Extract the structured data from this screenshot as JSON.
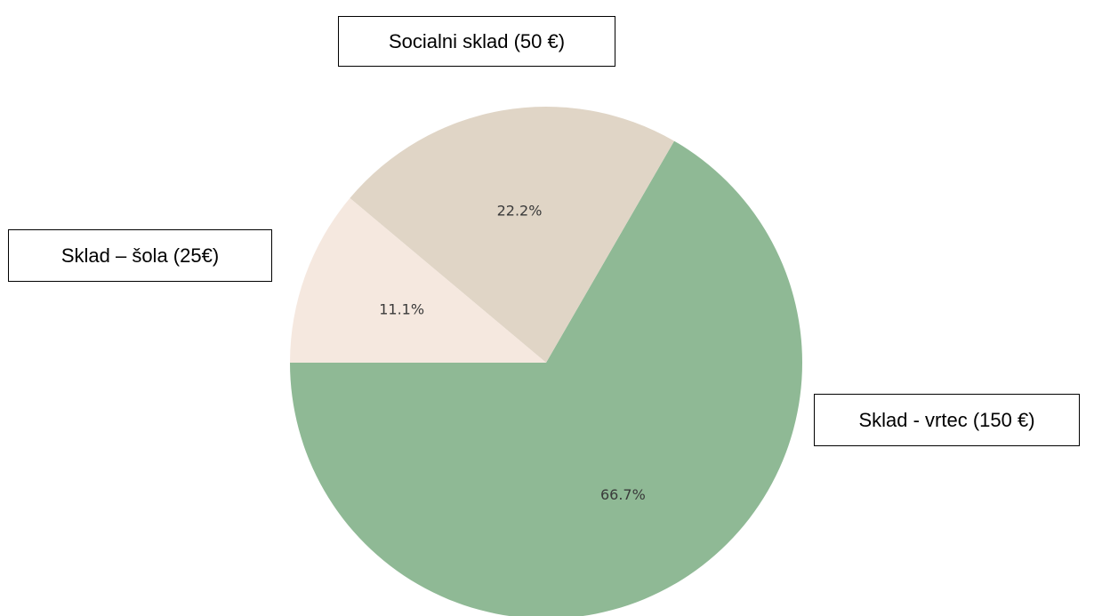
{
  "chart_data": {
    "type": "pie",
    "categories": [
      "Sklad - vrtec (150 €)",
      "Socialni sklad (50 €)",
      "Sklad – šola (25€)"
    ],
    "values": [
      150,
      50,
      25
    ],
    "percent_labels": [
      "66.7%",
      "22.2%",
      "11.1%"
    ],
    "colors": [
      "#8fb995",
      "#e0d5c6",
      "#f5e8df"
    ],
    "start_angle_deg": 180,
    "direction": "counterclockwise",
    "legend": "none"
  }
}
